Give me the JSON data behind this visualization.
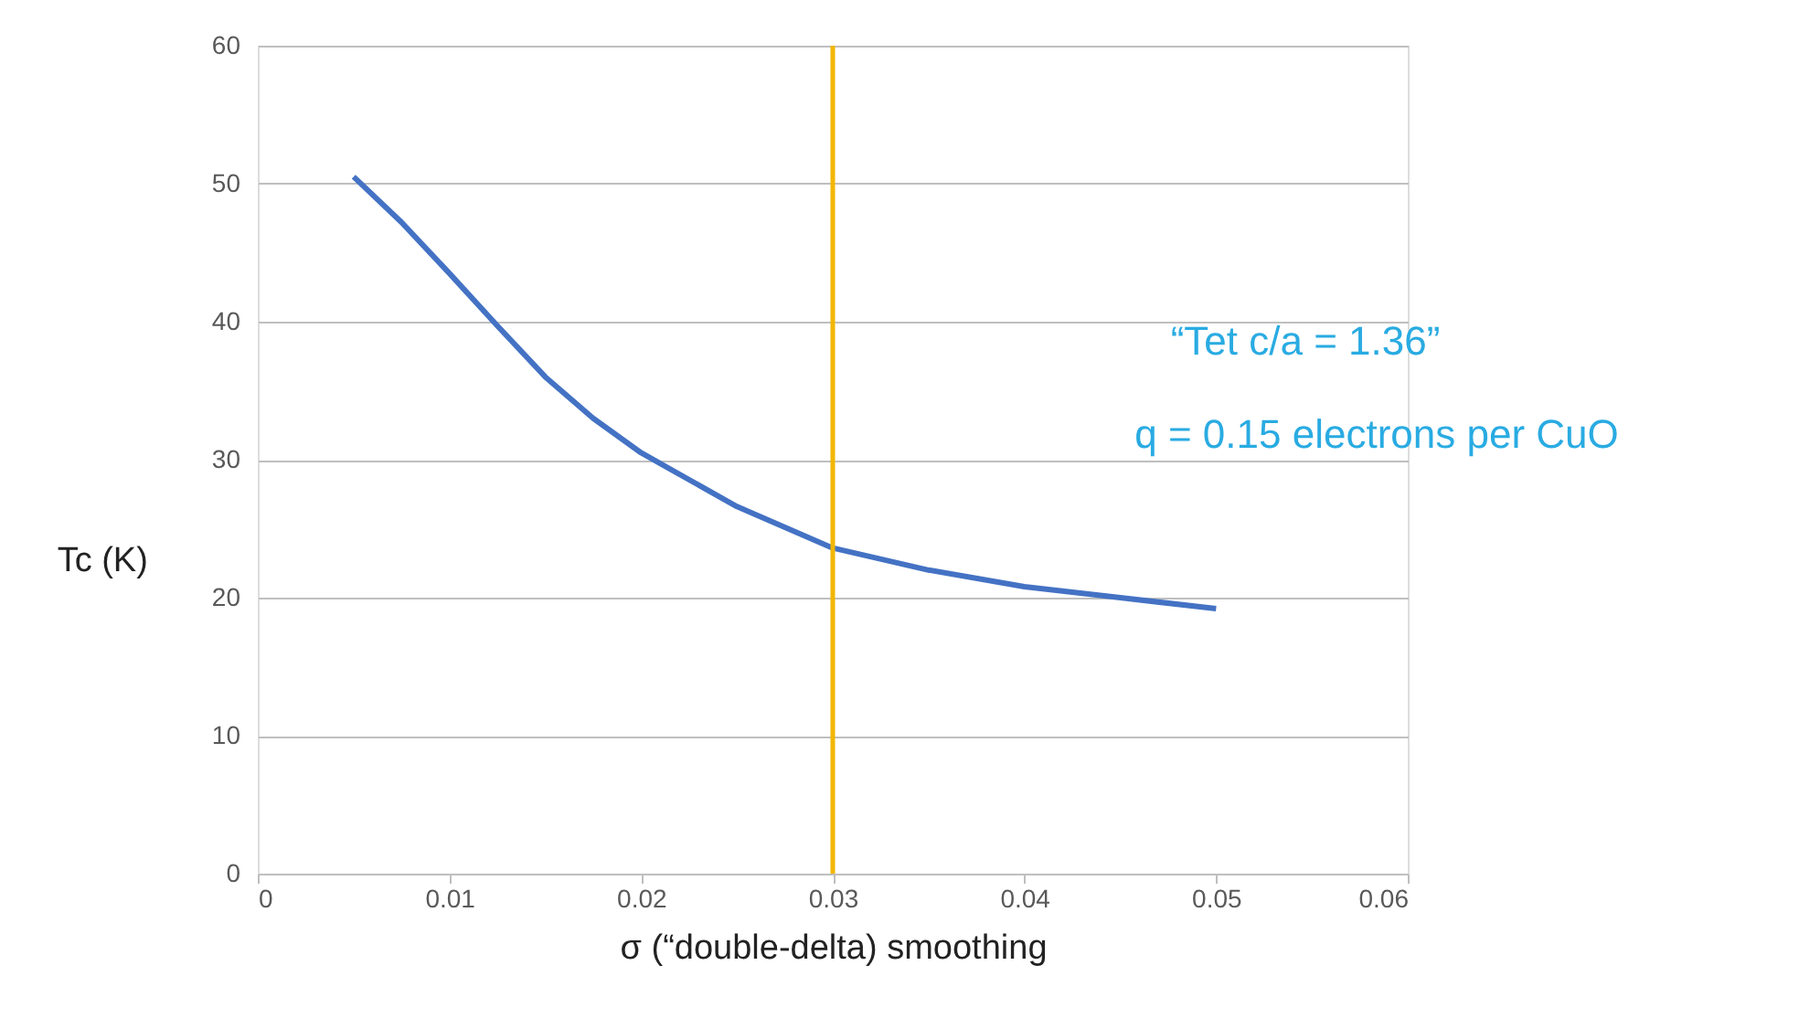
{
  "chart_data": {
    "type": "line",
    "xlabel": "σ (“double-delta) smoothing",
    "ylabel": "Tc (K)",
    "x": [
      0.005,
      0.0075,
      0.01,
      0.0125,
      0.015,
      0.0175,
      0.02,
      0.025,
      0.03,
      0.035,
      0.04,
      0.045,
      0.05
    ],
    "series": [
      {
        "color": "#4472c4",
        "values": [
          50.5,
          47.2,
          43.5,
          39.7,
          36.0,
          33.0,
          30.5,
          26.6,
          23.6,
          22.0,
          20.8,
          20.0,
          19.2
        ]
      }
    ],
    "xlim": [
      0,
      0.06
    ],
    "xticks": [
      0,
      0.01,
      0.02,
      0.03,
      0.04,
      0.05,
      0.06
    ],
    "ylim": [
      0,
      60
    ],
    "yticks": [
      0,
      10,
      20,
      30,
      40,
      50,
      60
    ],
    "grid": "y",
    "marker": "none",
    "line_style": "solid",
    "ref_lines": [
      {
        "axis": "x",
        "value": 0.03,
        "color": "#f2b705"
      }
    ],
    "annotations": [
      "“Tet c/a = 1.36”",
      "q = 0.15 electrons per CuO"
    ]
  }
}
